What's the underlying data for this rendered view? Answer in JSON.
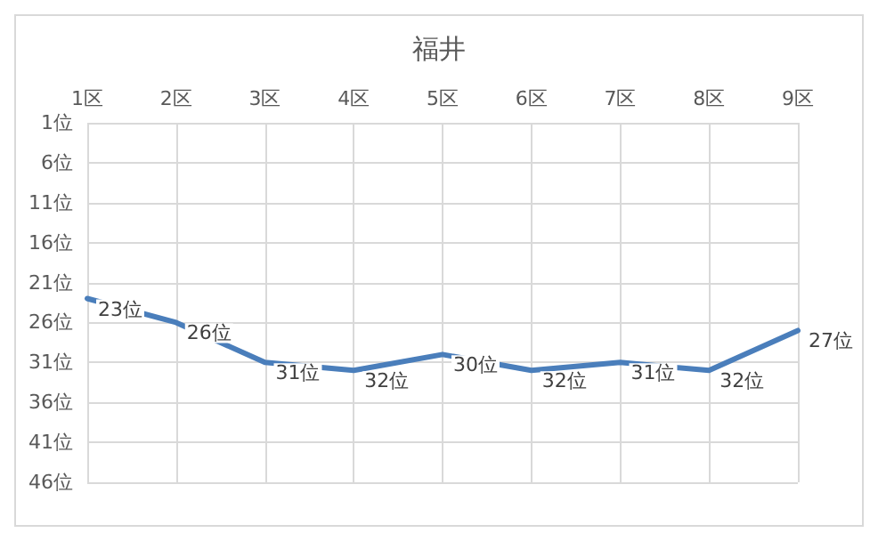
{
  "chart_data": {
    "type": "line",
    "title": "福井",
    "categories": [
      "1区",
      "2区",
      "3区",
      "4区",
      "5区",
      "6区",
      "7区",
      "8区",
      "9区"
    ],
    "series": [
      {
        "color": "#4a7ebb",
        "values": [
          23,
          26,
          31,
          32,
          30,
          32,
          31,
          32,
          27
        ],
        "value_labels": [
          "23位",
          "26位",
          "31位",
          "32位",
          "30位",
          "32位",
          "31位",
          "32位",
          "27位"
        ]
      }
    ],
    "ylim": [
      46,
      1
    ],
    "yticks": [
      {
        "value": 1,
        "label": "1位"
      },
      {
        "value": 6,
        "label": "6位"
      },
      {
        "value": 11,
        "label": "11位"
      },
      {
        "value": 16,
        "label": "16位"
      },
      {
        "value": 21,
        "label": "21位"
      },
      {
        "value": 26,
        "label": "26位"
      },
      {
        "value": 31,
        "label": "31位"
      },
      {
        "value": 36,
        "label": "36位"
      },
      {
        "value": 41,
        "label": "41位"
      },
      {
        "value": 46,
        "label": "46位"
      }
    ],
    "grid": true,
    "marker": "none",
    "line_style": "solid"
  }
}
